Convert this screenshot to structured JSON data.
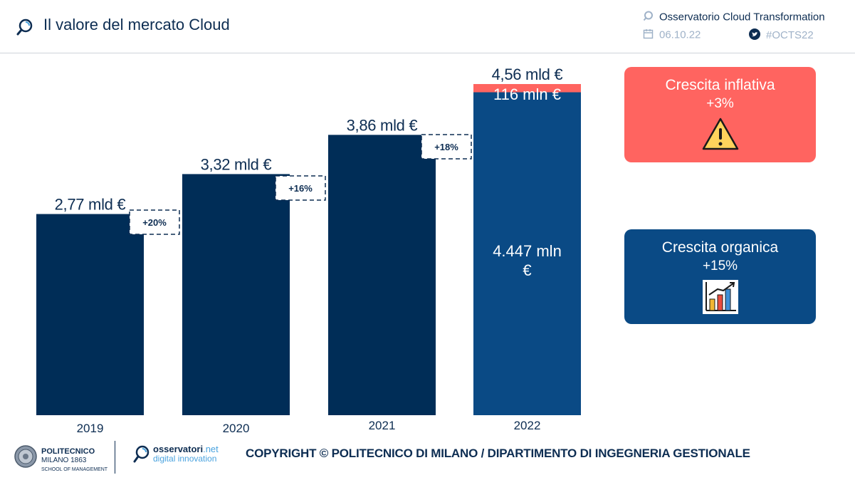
{
  "header": {
    "title": "Il valore del mercato Cloud",
    "observatory": "Osservatorio Cloud Transformation",
    "date": "06.10.22",
    "hashtag": "#OCTS22"
  },
  "chart_data": {
    "type": "bar",
    "title": "Il valore del mercato Cloud",
    "categories": [
      "2019",
      "2020",
      "2021",
      "2022"
    ],
    "values": [
      2.77,
      3.32,
      3.86,
      4.56
    ],
    "value_labels": [
      "2,77 mld €",
      "3,32 mld €",
      "3,86 mld €",
      "4,56 mld €"
    ],
    "unit": "mld €",
    "ylim": [
      0,
      4.56
    ],
    "growth_labels": [
      "+20%",
      "+16%",
      "+18%"
    ],
    "stacked_2022": {
      "series": [
        {
          "name": "Crescita organica",
          "value": 4.447,
          "label": "4.447 mln €"
        },
        {
          "name": "Crescita inflativa",
          "value": 0.116,
          "label": "116 mln €"
        }
      ]
    },
    "colors": {
      "bar": "#002d57",
      "organic": "#0a4a85",
      "inflation": "#ff6460"
    }
  },
  "cards": {
    "inflation": {
      "title": "Crescita inflativa",
      "value": "+3%",
      "icon": "warning-icon",
      "color": "#ff6460"
    },
    "organic": {
      "title": "Crescita organica",
      "value": "+15%",
      "icon": "growth-chart-icon",
      "color": "#0a4a85"
    }
  },
  "footer": {
    "university": "POLITECNICO",
    "university_sub1": "MILANO 1863",
    "university_sub2": "SCHOOL OF MANAGEMENT",
    "osservatori_a": "osservatori",
    "osservatori_b": ".net",
    "osservatori_sub": "digital innovation",
    "copyright": "COPYRIGHT © POLITECNICO DI MILANO / DIPARTIMENTO DI INGEGNERIA GESTIONALE"
  }
}
